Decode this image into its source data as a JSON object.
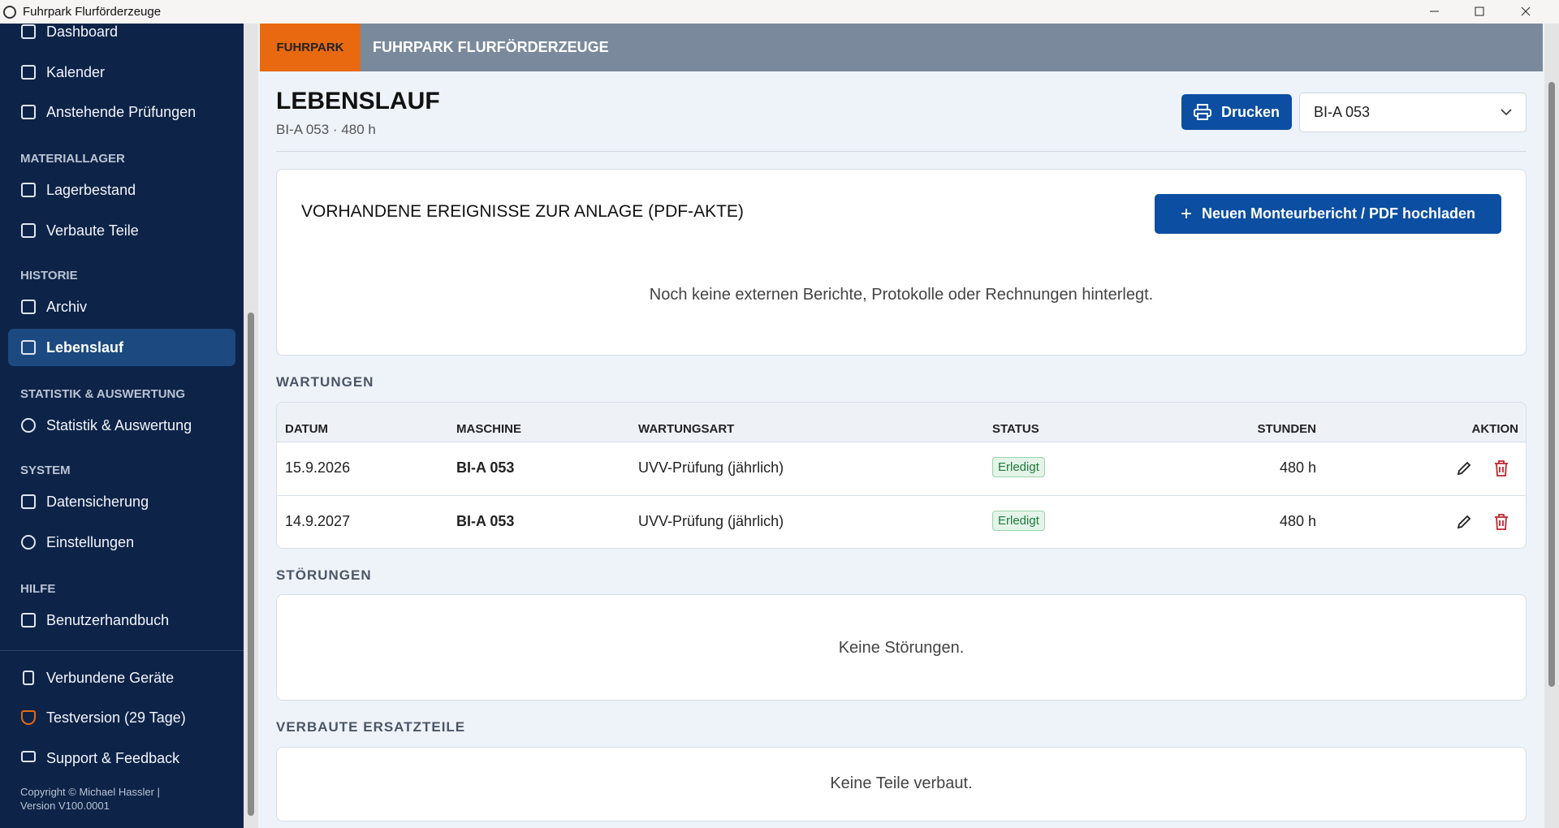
{
  "window": {
    "title": "Fuhrpark Flurförderzeuge"
  },
  "sidebar": {
    "items": [
      "Dashboard",
      "Kalender",
      "Anstehende Prüfungen"
    ],
    "sections": [
      {
        "title": "MATERIALLAGER",
        "items": [
          "Lagerbestand",
          "Verbaute Teile"
        ]
      },
      {
        "title": "HISTORIE",
        "items": [
          "Archiv",
          "Lebenslauf"
        ]
      },
      {
        "title": "STATISTIK & AUSWERTUNG",
        "items": [
          "Statistik & Auswertung"
        ]
      },
      {
        "title": "SYSTEM",
        "items": [
          "Datensicherung",
          "Einstellungen"
        ]
      },
      {
        "title": "HILFE",
        "items": [
          "Benutzerhandbuch"
        ]
      }
    ],
    "footer_items": [
      "Verbundene Geräte",
      "Testversion (29 Tage)",
      "Support & Feedback"
    ],
    "copyright": "Copyright © Michael Hassler |",
    "version": "Version V100.0001"
  },
  "header": {
    "badge": "FUHRPARK",
    "title": "FUHRPARK FLURFÖRDERZEUGE"
  },
  "page": {
    "title": "LEBENSLAUF",
    "subtitle": "BI-A 053 · 480 h",
    "print_button": "Drucken",
    "select_value": "BI-A 053"
  },
  "events": {
    "title": "VORHANDENE EREIGNISSE ZUR ANLAGE (PDF-AKTE)",
    "upload_button": "Neuen Monteurbericht / PDF hochladen",
    "empty": "Noch keine externen Berichte, Protokolle oder Rechnungen hinterlegt."
  },
  "maintenance": {
    "title": "WARTUNGEN",
    "columns": [
      "DATUM",
      "MASCHINE",
      "WARTUNGSART",
      "STATUS",
      "STUNDEN",
      "AKTION"
    ],
    "rows": [
      [
        "15.9.2026",
        "BI-A 053",
        "UVV-Prüfung (jährlich)",
        "Erledigt",
        "480 h"
      ],
      [
        "14.9.2027",
        "BI-A 053",
        "UVV-Prüfung (jährlich)",
        "Erledigt",
        "480 h"
      ]
    ]
  },
  "faults": {
    "title": "STÖRUNGEN",
    "empty": "Keine Störungen."
  },
  "parts": {
    "title": "VERBAUTE ERSATZTEILE",
    "empty": "Keine Teile verbaut."
  }
}
